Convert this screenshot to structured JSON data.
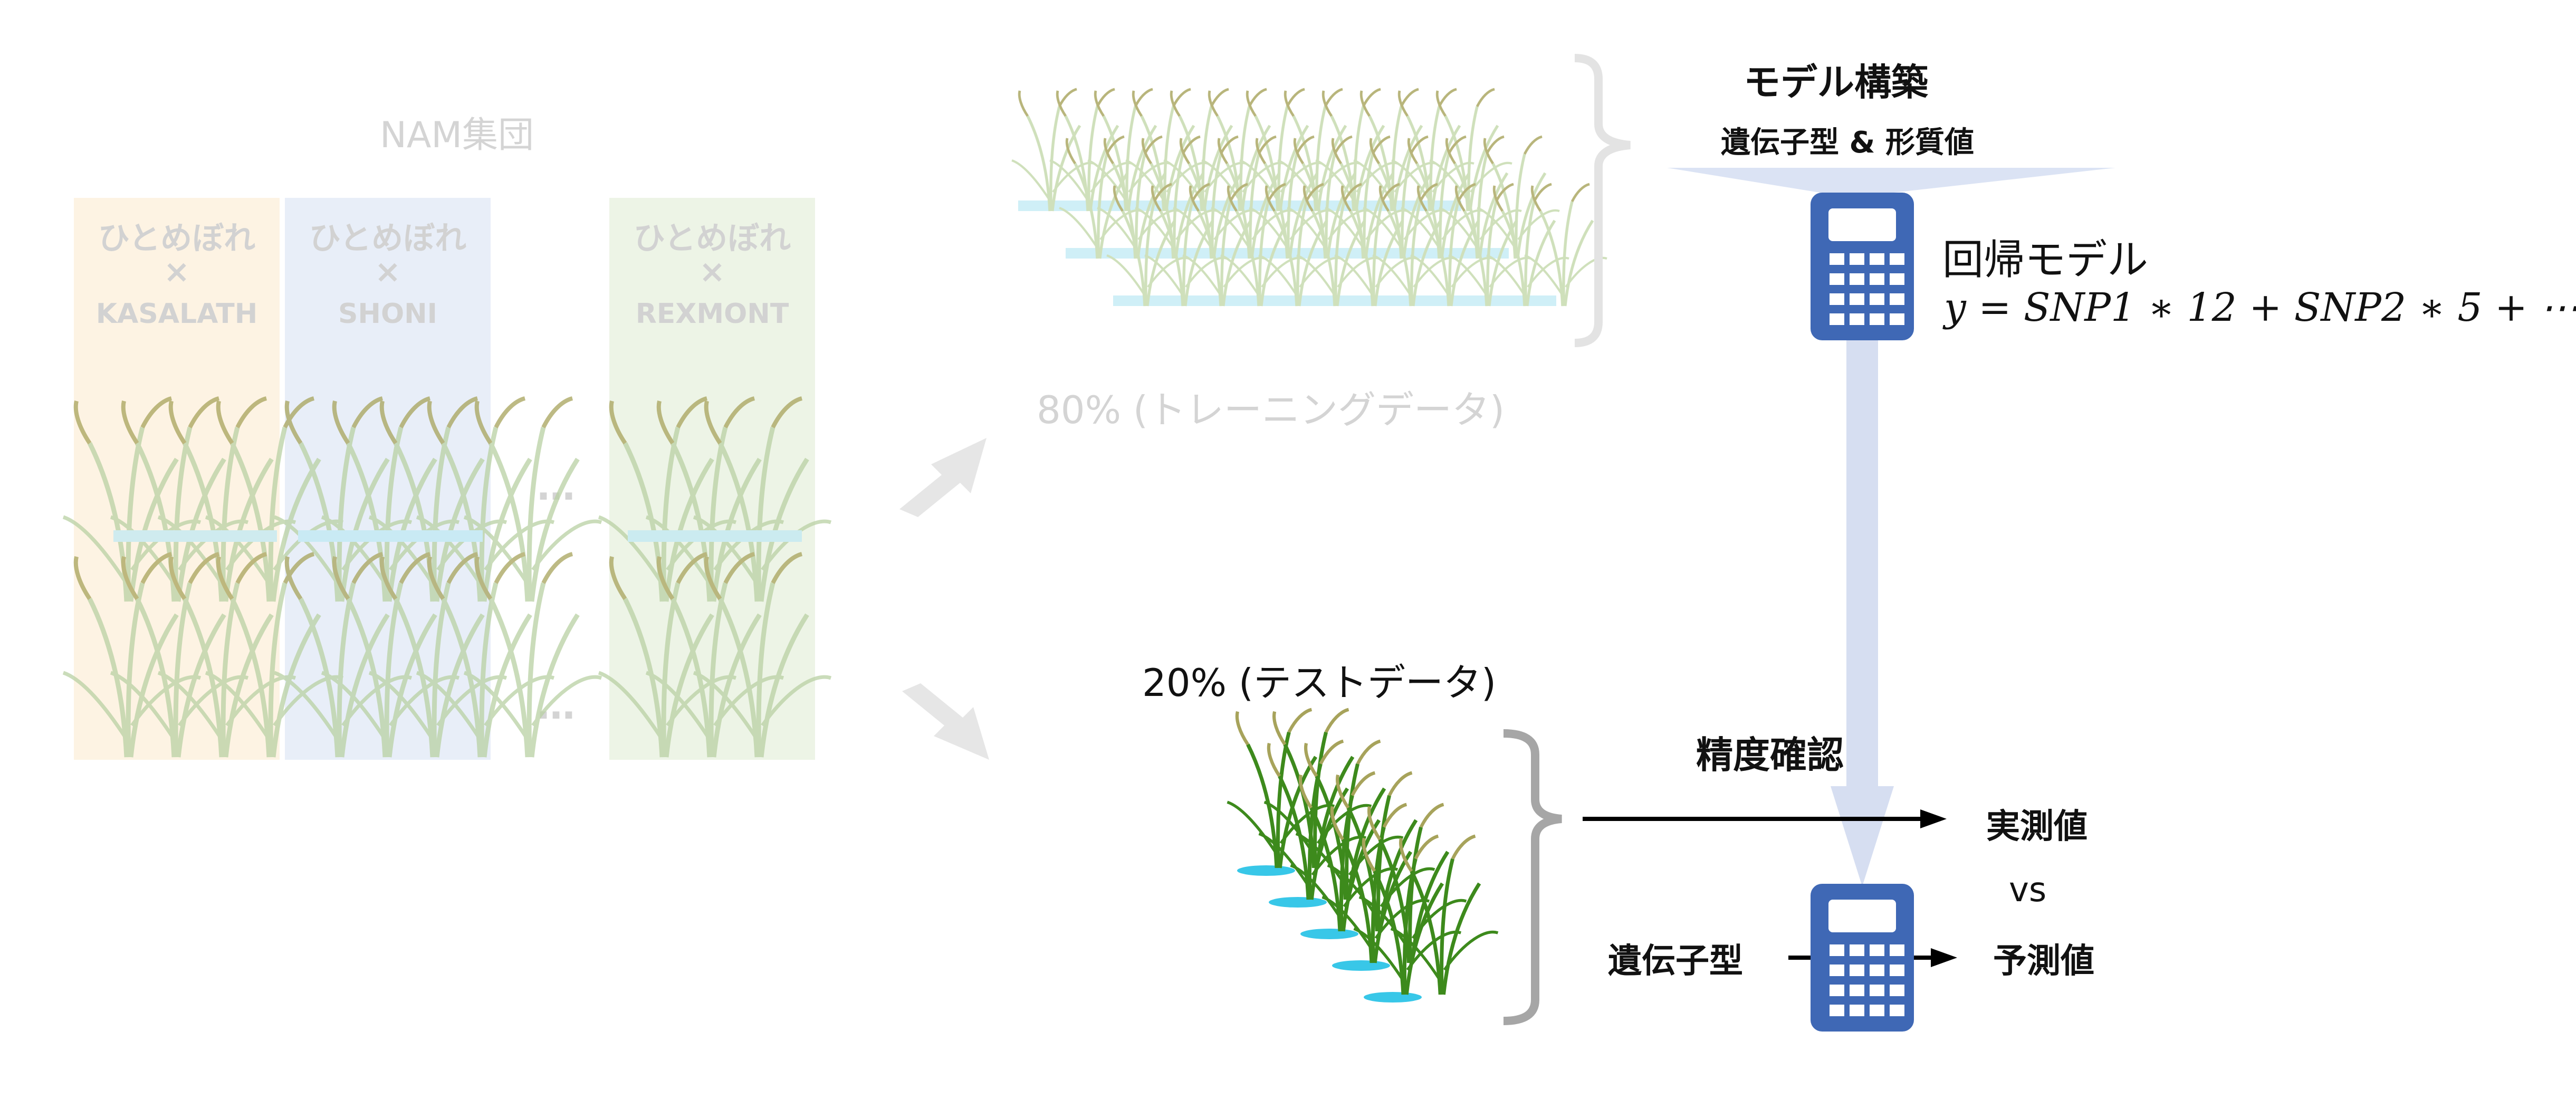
{
  "nam": {
    "title": "NAM集団",
    "columns": [
      {
        "parent": "ひとめぼれ",
        "cross": "×",
        "donor": "KASALATH",
        "color": "#fdf3e3"
      },
      {
        "parent": "ひとめぼれ",
        "cross": "×",
        "donor": "SHONI",
        "color": "#e8eef8"
      },
      {
        "parent": "ひとめぼれ",
        "cross": "×",
        "donor": "REXMONT",
        "color": "#edf4e6"
      }
    ],
    "ellipsis": "…"
  },
  "training": {
    "label": "80% (トレーニングデータ)"
  },
  "test": {
    "label": "20% (テストデータ)"
  },
  "model_build": {
    "title": "モデル構築",
    "inputs": "遺伝子型 & 形質値"
  },
  "regression": {
    "title": "回帰モデル",
    "formula": "y = SNP1 ∗ 12 + SNP2 ∗ 5 + ⋯"
  },
  "validation": {
    "title": "精度確認",
    "observed": "実測値",
    "vs": "vs",
    "genotype": "遺伝子型",
    "predicted": "予測値"
  },
  "colors": {
    "calculator": "#3f68b5",
    "funnel": "#dbe3f4",
    "faded_text": "#d4d4d4",
    "plant_green": "#4a8a1f",
    "water": "#35c6e6"
  }
}
